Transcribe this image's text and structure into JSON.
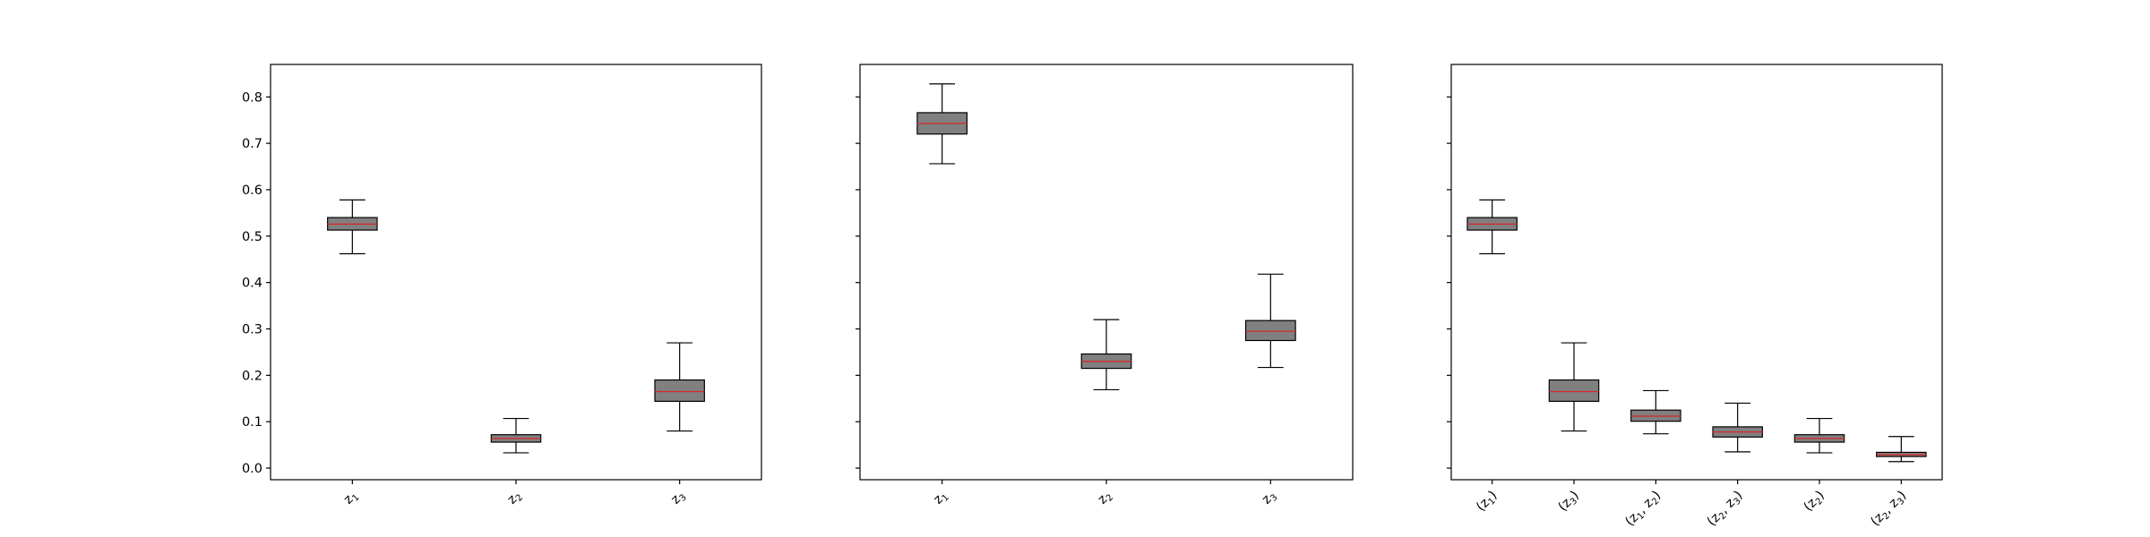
{
  "chart_data": [
    {
      "type": "box",
      "ylim": [
        -0.025,
        0.87
      ],
      "yticks": [
        0.0,
        0.1,
        0.2,
        0.3,
        0.4,
        0.5,
        0.6,
        0.7,
        0.8
      ],
      "ytick_labels": [
        "0.0",
        "0.1",
        "0.2",
        "0.3",
        "0.4",
        "0.5",
        "0.6",
        "0.7",
        "0.8"
      ],
      "show_ytick_labels": true,
      "categories": [
        {
          "base": "z",
          "sub": "1"
        },
        {
          "base": "z",
          "sub": "2"
        },
        {
          "base": "z",
          "sub": "3"
        }
      ],
      "boxes": [
        {
          "whisker_low": 0.462,
          "q1": 0.513,
          "median": 0.526,
          "q3": 0.54,
          "whisker_high": 0.578
        },
        {
          "whisker_low": 0.033,
          "q1": 0.056,
          "median": 0.064,
          "q3": 0.072,
          "whisker_high": 0.107
        },
        {
          "whisker_low": 0.08,
          "q1": 0.144,
          "median": 0.165,
          "q3": 0.19,
          "whisker_high": 0.27
        }
      ]
    },
    {
      "type": "box",
      "ylim": [
        -0.025,
        0.87
      ],
      "yticks": [
        0.0,
        0.1,
        0.2,
        0.3,
        0.4,
        0.5,
        0.6,
        0.7,
        0.8
      ],
      "show_ytick_labels": false,
      "categories": [
        {
          "base": "z",
          "sub": "1"
        },
        {
          "base": "z",
          "sub": "2"
        },
        {
          "base": "z",
          "sub": "3"
        }
      ],
      "boxes": [
        {
          "whisker_low": 0.656,
          "q1": 0.72,
          "median": 0.743,
          "q3": 0.766,
          "whisker_high": 0.828
        },
        {
          "whisker_low": 0.169,
          "q1": 0.215,
          "median": 0.23,
          "q3": 0.246,
          "whisker_high": 0.32
        },
        {
          "whisker_low": 0.217,
          "q1": 0.275,
          "median": 0.295,
          "q3": 0.318,
          "whisker_high": 0.418
        }
      ]
    },
    {
      "type": "box",
      "ylim": [
        -0.025,
        0.87
      ],
      "yticks": [
        0.0,
        0.1,
        0.2,
        0.3,
        0.4,
        0.5,
        0.6,
        0.7,
        0.8
      ],
      "show_ytick_labels": false,
      "categories": [
        {
          "base": "(z",
          "sub": "1",
          "tail": ")"
        },
        {
          "base": "(z",
          "sub": "3",
          "tail": ")"
        },
        {
          "base": "(z",
          "sub": "1",
          "mid": ", z",
          "sub2": "2",
          "tail": ")"
        },
        {
          "base": "(z",
          "sub": "2",
          "mid": ", z",
          "sub2": "3",
          "tail": ")"
        },
        {
          "base": "(z",
          "sub": "2",
          "tail": ")"
        },
        {
          "base": "(z",
          "sub": "2",
          "mid": ", z",
          "sub2": "3",
          "tail": ")"
        }
      ],
      "boxes": [
        {
          "whisker_low": 0.462,
          "q1": 0.513,
          "median": 0.526,
          "q3": 0.54,
          "whisker_high": 0.578
        },
        {
          "whisker_low": 0.08,
          "q1": 0.144,
          "median": 0.165,
          "q3": 0.19,
          "whisker_high": 0.27
        },
        {
          "whisker_low": 0.074,
          "q1": 0.101,
          "median": 0.112,
          "q3": 0.125,
          "whisker_high": 0.167
        },
        {
          "whisker_low": 0.035,
          "q1": 0.067,
          "median": 0.078,
          "q3": 0.089,
          "whisker_high": 0.14
        },
        {
          "whisker_low": 0.033,
          "q1": 0.056,
          "median": 0.064,
          "q3": 0.072,
          "whisker_high": 0.107
        },
        {
          "whisker_low": 0.014,
          "q1": 0.025,
          "median": 0.029,
          "q3": 0.034,
          "whisker_high": 0.068
        }
      ]
    }
  ],
  "colors": {
    "box_fill": "#808080",
    "median_line": "#d62728",
    "edge": "#000000"
  }
}
